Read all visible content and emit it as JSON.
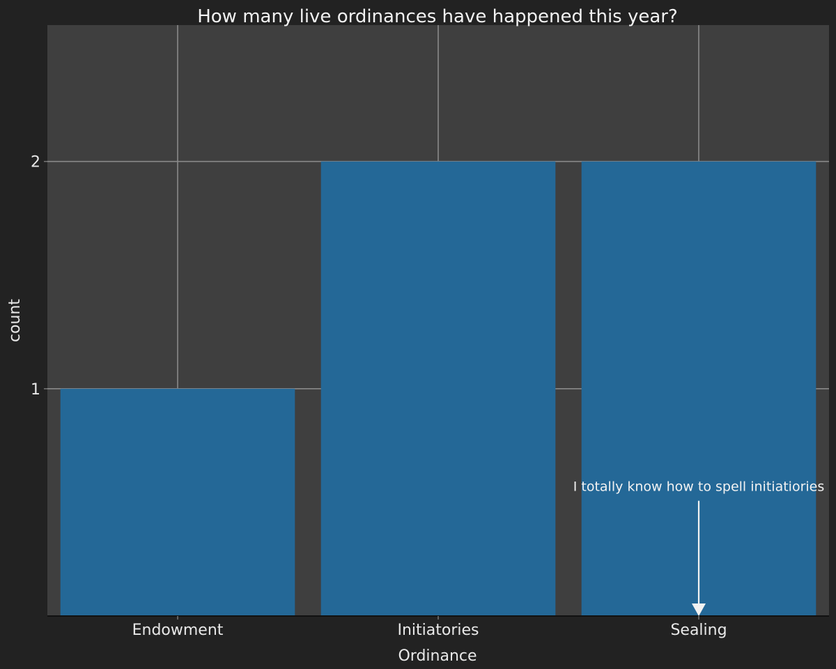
{
  "chart_data": {
    "type": "bar",
    "title": "How many live ordinances have happened this year?",
    "xlabel": "Ordinance",
    "ylabel": "count",
    "categories": [
      "Endowment",
      "Initiatories",
      "Sealing"
    ],
    "values": [
      1,
      2,
      2
    ],
    "ylim": [
      0,
      2.6
    ],
    "yticks": [
      1,
      2
    ],
    "grid": true,
    "annotation": {
      "text": "I totally know how to spell initiatiories",
      "category": "Sealing",
      "text_y": 0.55,
      "arrow_end_y": 0
    }
  },
  "colors": {
    "background": "#222222",
    "panel": "#3f3f3f",
    "grid": "#8a8a8a",
    "bar": "#246897",
    "text": "#f2f2f2"
  }
}
